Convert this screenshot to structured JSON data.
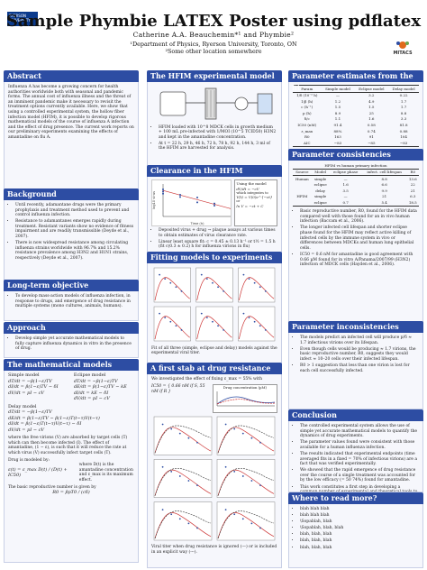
{
  "header": {
    "title": "Sample Phymbie LATEX Poster using pdflatex",
    "authors": "Catherine A.A. Beauchemin*¹ and Phymbie²",
    "affil1": "¹Department of Physics, Ryerson University, Toronto, ON",
    "affil2": "²Some other location somewhere",
    "logo_left": "RYERSON UNIVERSITY",
    "logo_right": "MITACS"
  },
  "abstract": {
    "title": "Abstract",
    "text": "Influenza A has become a growing concern for health authorities worldwide both with seasonal and pandemic forms. The annual cost of influenza illness and the threat of an imminent pandemic make it necessary to revisit the treatment options currently available. Here, we show that using a controlled experimental system, the hollow fiber infection model (HFIM), it is possible to develop rigorous mathematical models of the course of influenza A infection and the effect of drug presence. The current work reports on our preliminary experiments examining the effects of amantadine on flu A."
  },
  "background": {
    "title": "Background",
    "items": [
      "Until recently, adamantane drugs were the primary prophylaxis and treatment method used to prevent and control influenza infection.",
      "Resistance to adamantanes emerges rapidly during treatment. Resistant variants show no evidence of fitness impairment and are readily transmissible (Deyde et al., 2007).",
      "There is now widespread resistance among circulating influenza strains worldwide with 96.7% and 15.2% resistance prevalence among H3N2 and H1N1 strains, respectively (Deyde et al., 2007)."
    ]
  },
  "objective": {
    "title": "Long-term objective",
    "items": [
      "To develop mass-action models of influenza infection, in response to drugs, and emergence of drug resistance in multiple systems (mono cultures, animals, humans)."
    ]
  },
  "approach": {
    "title": "Approach",
    "items": [
      "Develop simple yet accurate mathematical models to fully capture influenza dynamics in vitro in the presence of drug."
    ]
  },
  "models": {
    "title": "The mathematical models",
    "simple_label": "Simple model",
    "eclipse_label": "Eclipse model",
    "simple_eqs": [
      "dT/dt = −β(1−ε)TV",
      "dI/dt = β(1−ε)TV − δI",
      "dV/dt = pI − cV"
    ],
    "eclipse_eqs": [
      "dT/dt = −β(1−ε)TV",
      "dE/dt = β(1−ε)TV − kE",
      "dI/dt = kE − δI",
      "dV/dt = pI − cV"
    ],
    "delay_label": "Delay model",
    "delay_eqs": [
      "dT/dt = −β(1−ε)TV",
      "dE/dt = β(1−ε)TV − β(1−ε)T(t−τ)V(t−τ)",
      "dI/dt = β(1−ε)T(t−τ)V(t−τ) − δI",
      "dV/dt = pI − cV"
    ],
    "text1": "where the free virions (V) are absorbed by target cells (T) which can then become infected (I). The effect of amantadine, (1 − ε), is such that it will reduce the rate at which virus (V) successfully infect target cells (T).",
    "text2": "Drug is modeled by:",
    "drug_eq": "ε(t) = ε_max D(t) / (D(t) + IC50)",
    "drug_note": "where D(t) is the amantadine concentration and ε_max is its maximum effect.",
    "text3": "The basic reproductive number is given by",
    "r0_eq": "R0 = βpT0 / (cδ)"
  },
  "hfim": {
    "title": "The HFIM experimental model",
    "items": [
      "HFIM loaded with 10^8 MDCK cells in growth medium + 100 mL pre-infected with 1/MOI (10^5 TCID50) H3N2 and kept in the amantadine concentration.",
      "At t = 22 h, 29 h, 46 h, 72 h, 78 h, 92 h, 144 h, 3 ml of the HFIM are harvested for analysis."
    ]
  },
  "clearance": {
    "title": "Clearance in the HFIM",
    "legend_title": "Using the model",
    "legend_eqs": [
      "dV/dt = −cV",
      "which integrates to",
      "V(t) = V(0)e^{−ct}",
      "or",
      "ln V = −ct + C"
    ],
    "items": [
      "Deposited virus + drug → plaque assays at various times to obtain estimates of virus clearance rate.",
      "Linear least square fit: c = 0.45 ± 0.13 h⁻¹ or t½ = 1.5 h (fit c(0.3 ± 0.2) h for influenza virions in flu)"
    ],
    "chart_data": {
      "type": "scatter",
      "xlabel": "Time (h)",
      "ylabel": "log10 virus",
      "series": [
        {
          "name": "data",
          "x": [
            0,
            0,
            0,
            2,
            2,
            4,
            4,
            6,
            6,
            8,
            8
          ],
          "y": [
            6.0,
            5.6,
            5.2,
            5.0,
            4.6,
            4.5,
            3.6,
            3.4,
            3.0,
            2.7,
            2.2
          ]
        }
      ],
      "fit": {
        "x": [
          0,
          8
        ],
        "y": [
          5.8,
          2.4
        ]
      },
      "xlim": [
        0,
        8
      ],
      "ylim": [
        1,
        7
      ]
    }
  },
  "fitting": {
    "title": "Fitting models to experiments",
    "caption": "Fit of all three (simple, eclipse and delay) models against the experimental viral titer.",
    "panels": 6
  },
  "resistance": {
    "title": "A first stab at drug resistance",
    "text": "We investigated the effect of fixing ε_max = 55% with",
    "eq": "IC50 = { 0.66 nM if S, 55 nM if R }",
    "inset_title": "Drug concentration (µM)",
    "caption": "Viral titer when drug resistance is ignored (—) or is included in an explicit way (---)."
  },
  "params": {
    "title": "Parameter estimates from the fits",
    "header": [
      "Param",
      "Simple model",
      "Eclipse model",
      "Delay model"
    ],
    "rows": [
      [
        "1/δ (10⁻⁵ h)",
        "—",
        "3.2",
        "0.22"
      ],
      [
        "1/β (h)",
        "1.2",
        "4.9",
        "1.7"
      ],
      [
        "c (h⁻¹)",
        "1.5",
        "1.5",
        "1.7"
      ],
      [
        "p (h)",
        "8.9",
        "25",
        "8.8"
      ],
      [
        "δ/c",
        "1.1",
        "1.6",
        "3.3"
      ],
      [
        "IC50 (nM)",
        "91.4",
        "0.58",
        "81.8"
      ],
      [
        "ε_max",
        "88%",
        "0.74",
        "0.88"
      ],
      [
        "R0",
        "163",
        "91",
        "104"
      ],
      [
        "AIC",
        "−83",
        "−85",
        "−83"
      ]
    ]
  },
  "consistency": {
    "title": "Parameter consistencies",
    "table_title": "HFIM vs human primary infection",
    "header": [
      "Source",
      "Model",
      "eclipse phase",
      "infect. cell lifespan",
      "R0"
    ],
    "rows": [
      [
        "Human",
        "simple",
        "—",
        "8.8",
        "13.6"
      ],
      [
        "",
        "eclipse",
        "1.6",
        "6.6",
        "22"
      ],
      [
        "",
        "delay",
        "3.5",
        "9.9",
        "21"
      ],
      [
        "HFIM",
        "simple",
        "—",
        "21",
        "6.3"
      ],
      [
        "",
        "eclipse",
        "0.7",
        "5.4",
        "18.5"
      ]
    ],
    "items": [
      "Basic reproductive number, R0, found for the HFIM data compared well with those found for an in vivo human infection (Baccam et al., 2006).",
      "The longer infected cell lifespan and shorter eclipse phase found for the HFIM may reflect active killing of infected cells by the immune system in vivo or differences between MDCKs and human lung epithelial cells.",
      "IC50 = 0.6 nM for amantadine is good agreement with 0.66 µM found for in vitro A/Panama/2007/99 (H3N2) infection of MDCK cells (Hayden et al., 2006)."
    ]
  },
  "inconsistencies": {
    "title": "Parameter inconsistencies",
    "items": [
      "The models predict an infected cell will produce p/δ ≈ 1.7 infectious virions over its lifespan.",
      "Even though cells would be producing ≈ 1.7 virions, the basic reproductive number, R0, suggests they would infect ≈ 10–20 cells over their infected lifespan.",
      "R0 > 1 suggestion that less than one virion is lost for each cell successfully infected."
    ]
  },
  "conclusion": {
    "title": "Conclusion",
    "items": [
      "The controlled experimental system allows the use of simple yet accurate mathematical models to quantify the dynamics of drug experiments.",
      "The parameter values found were consistent with those available for a human influenza infection.",
      "The results indicated that experimental endpoints (time averaged fits in a fixed = 70% of infectious virions) are a fact that was verified experimentally.",
      "We showed that the rapid emergence of drug resistance over the course of a single treatment was accounted for by the low efficacy (= 50 74%) found for amantadine.",
      "This work constitutes a first step in developing a common number of experimental and theoretical tools to quantify drug efficacy and the emergence of drug resistance over the course of an influenza infection."
    ]
  },
  "next": {
    "title": "Where to read more?",
    "items": [
      "blah blah blah",
      "blah blah blah",
      "\\Sopablah, blah",
      "\\Sopablah, blah, blah",
      "blah, blah, blah",
      "blah, blah, blah",
      "blah, blah, blah"
    ]
  }
}
